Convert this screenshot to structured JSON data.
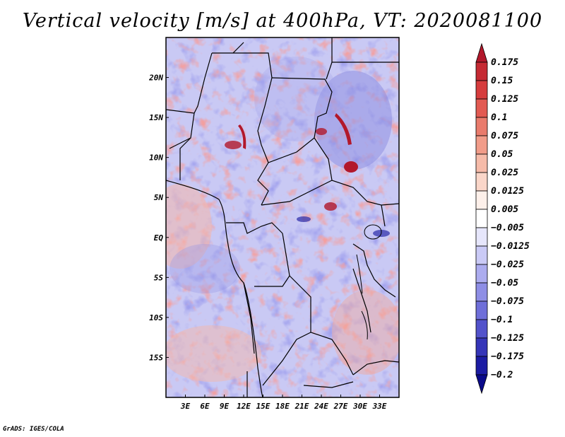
{
  "title": "Vertical velocity [m/s] at 400hPa, VT: 2020081100",
  "credit": "GrADS: IGES/COLA",
  "map": {
    "lon_range": [
      0,
      36
    ],
    "lat_range": [
      -20,
      25
    ],
    "lon_labels": [
      "3E",
      "6E",
      "9E",
      "12E",
      "15E",
      "18E",
      "21E",
      "24E",
      "27E",
      "30E",
      "33E"
    ],
    "lat_labels": [
      "20N",
      "15N",
      "10N",
      "5N",
      "EQ",
      "5S",
      "10S",
      "15S"
    ]
  },
  "colorbar": {
    "levels": [
      "0.175",
      "0.15",
      "0.125",
      "0.1",
      "0.075",
      "0.05",
      "0.025",
      "0.0125",
      "0.005",
      "−0.005",
      "−0.0125",
      "−0.025",
      "−0.05",
      "−0.075",
      "−0.1",
      "−0.125",
      "−0.175",
      "−0.2"
    ],
    "colors": [
      "#b2182b",
      "#c52a33",
      "#d63c3d",
      "#e25a52",
      "#e97b6c",
      "#f19c89",
      "#f6bba9",
      "#fad6c9",
      "#fdf0ea",
      "#ffffff",
      "#e6e6fb",
      "#cacaf6",
      "#acacef",
      "#8e8ee5",
      "#6f6fd9",
      "#5252cb",
      "#3535b8",
      "#1c1ca3",
      "#0a0a8a"
    ]
  }
}
